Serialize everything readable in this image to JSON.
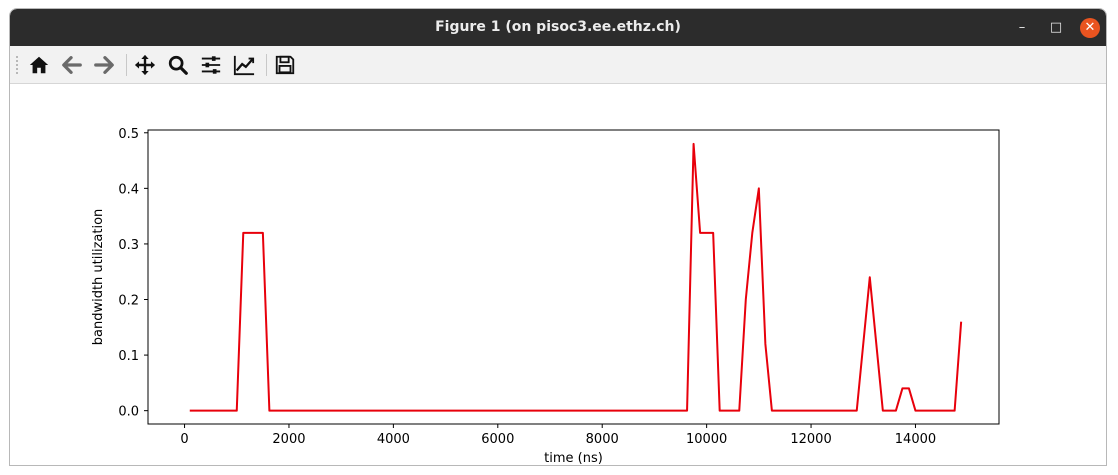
{
  "window": {
    "title": "Figure 1 (on pisoc3.ee.ethz.ch)",
    "controls": {
      "minimize": "–",
      "maximize": "□",
      "close": "✕"
    }
  },
  "toolbar": {
    "buttons": [
      {
        "name": "home",
        "icon": "home-icon"
      },
      {
        "name": "back",
        "icon": "arrow-left-icon"
      },
      {
        "name": "forward",
        "icon": "arrow-right-icon"
      },
      {
        "name": "pan",
        "icon": "move-icon"
      },
      {
        "name": "zoom",
        "icon": "zoom-icon"
      },
      {
        "name": "subplots",
        "icon": "sliders-icon"
      },
      {
        "name": "customize",
        "icon": "chart-edit-icon"
      },
      {
        "name": "save",
        "icon": "save-icon"
      }
    ]
  },
  "colors": {
    "line": "#e8000b",
    "titlebar": "#2c2c2c",
    "close": "#e95420"
  },
  "chart_data": {
    "type": "line",
    "title": "",
    "xlabel": "time (ns)",
    "ylabel": "bandwidth utilization",
    "xlim": [
      -700,
      15600
    ],
    "ylim": [
      -0.024,
      0.505
    ],
    "xticks": [
      0,
      2000,
      4000,
      6000,
      8000,
      10000,
      12000,
      14000
    ],
    "xtick_labels": [
      "0",
      "2000",
      "4000",
      "6000",
      "8000",
      "10000",
      "12000",
      "14000"
    ],
    "yticks": [
      0.0,
      0.1,
      0.2,
      0.3,
      0.4,
      0.5
    ],
    "ytick_labels": [
      "0.0",
      "0.1",
      "0.2",
      "0.3",
      "0.4",
      "0.5"
    ],
    "grid": false,
    "series": [
      {
        "color": "#e8000b",
        "x": [
          100,
          1000,
          1125,
          1500,
          1625,
          9625,
          9750,
          9875,
          10125,
          10250,
          10625,
          10750,
          10875,
          11000,
          11125,
          11250,
          12875,
          13125,
          13375,
          13625,
          13750,
          13875,
          14000,
          14750,
          14875
        ],
        "y": [
          0.0,
          0.0,
          0.32,
          0.32,
          0.0,
          0.0,
          0.48,
          0.32,
          0.32,
          0.0,
          0.0,
          0.2,
          0.32,
          0.4,
          0.12,
          0.0,
          0.0,
          0.24,
          0.0,
          0.0,
          0.04,
          0.04,
          0.0,
          0.0,
          0.16
        ]
      }
    ]
  }
}
